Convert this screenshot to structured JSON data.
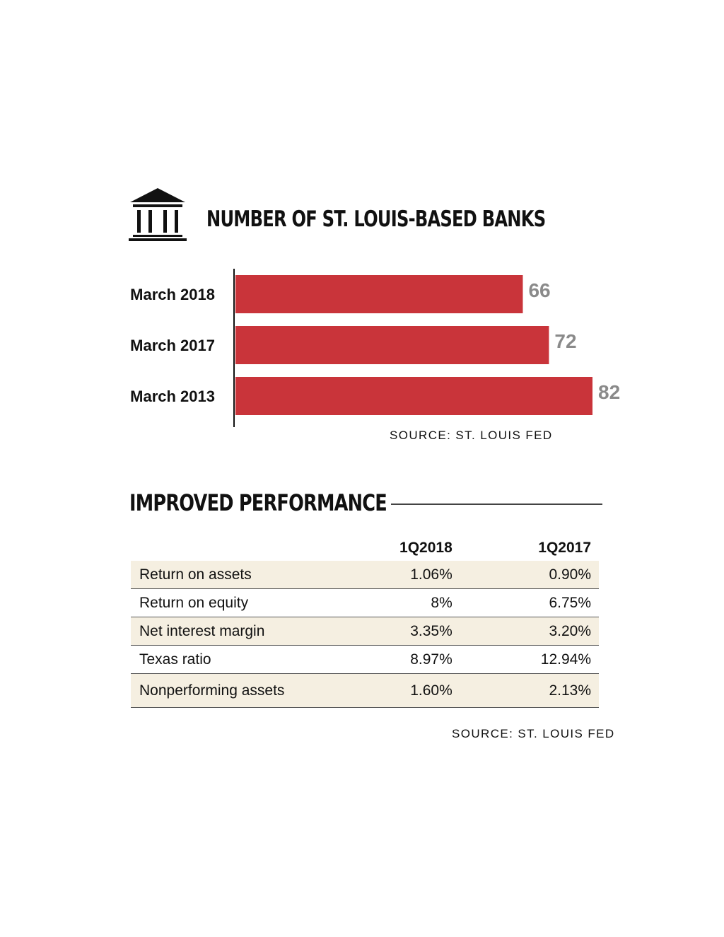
{
  "chart_data": {
    "type": "bar",
    "orientation": "horizontal",
    "title": "NUMBER OF ST. LOUIS-BASED BANKS",
    "categories": [
      "March 2018",
      "March 2017",
      "March 2013"
    ],
    "values": [
      66,
      72,
      82
    ],
    "data_labels": [
      "66",
      "72",
      "82"
    ],
    "bar_color": "#c9343a",
    "value_label_color": "#8a8a8a",
    "source": "SOURCE: ST. LOUIS FED"
  },
  "icon": "bank-building-icon",
  "performance": {
    "title": "IMPROVED PERFORMANCE",
    "columns": [
      "",
      "1Q2018",
      "1Q2017"
    ],
    "rows": [
      {
        "metric": "Return on assets",
        "q2018": "1.06%",
        "q2017": "0.90%"
      },
      {
        "metric": "Return on equity",
        "q2018": "8%",
        "q2017": "6.75%"
      },
      {
        "metric": "Net interest margin",
        "q2018": "3.35%",
        "q2017": "3.20%"
      },
      {
        "metric": "Texas ratio",
        "q2018": "8.97%",
        "q2017": "12.94%"
      },
      {
        "metric": "Nonperforming assets",
        "q2018": "1.60%",
        "q2017": "2.13%"
      }
    ],
    "stripe_color": "#f5efe1",
    "source": "SOURCE: ST. LOUIS FED"
  }
}
